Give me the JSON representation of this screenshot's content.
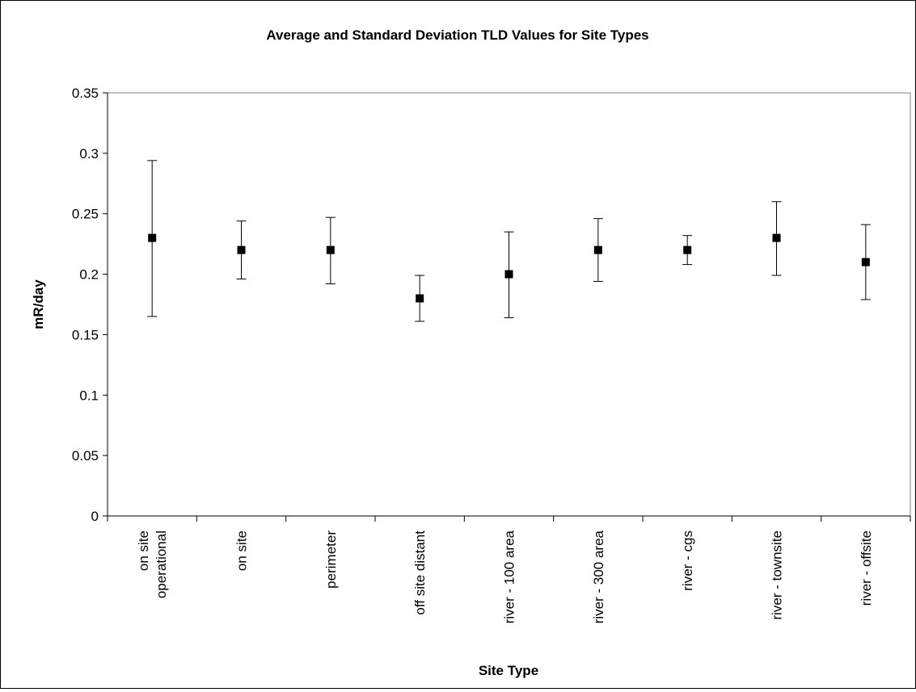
{
  "chart_data": {
    "type": "scatter",
    "title": "Average and Standard Deviation TLD Values  for Site Types",
    "xlabel": "Site Type",
    "ylabel": "mR/day",
    "ylim": [
      0,
      0.35
    ],
    "y_ticks": [
      "0",
      "0.05",
      "0.1",
      "0.15",
      "0.2",
      "0.25",
      "0.3",
      "0.35"
    ],
    "categories": [
      [
        "on site",
        "operational"
      ],
      [
        "on site"
      ],
      [
        "perimeter"
      ],
      [
        "off site distant"
      ],
      [
        "river - 100 area"
      ],
      [
        "river - 300 area"
      ],
      [
        "river - cgs"
      ],
      [
        "river - townsite"
      ],
      [
        "river - offsite"
      ]
    ],
    "series": [
      {
        "values": [
          0.23,
          0.22,
          0.22,
          0.18,
          0.2,
          0.22,
          0.22,
          0.23,
          0.21
        ],
        "error_low": [
          0.165,
          0.196,
          0.192,
          0.161,
          0.164,
          0.194,
          0.208,
          0.199,
          0.179
        ],
        "error_high": [
          0.294,
          0.244,
          0.247,
          0.199,
          0.235,
          0.246,
          0.232,
          0.26,
          0.241
        ]
      }
    ],
    "grid": false,
    "legend": false,
    "colors": {
      "marker": "#000000",
      "plot_border": "#808080",
      "axis": "#000000"
    }
  }
}
